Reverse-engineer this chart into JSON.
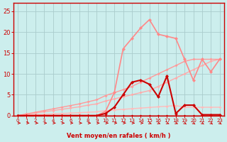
{
  "bg_color": "#cceeed",
  "grid_color": "#aacccc",
  "axis_color": "#cc0000",
  "xlabel": "Vent moyen/en rafales ( km/h )",
  "yticks": [
    0,
    5,
    10,
    15,
    20,
    25
  ],
  "xticks": [
    0,
    1,
    2,
    3,
    4,
    5,
    6,
    7,
    8,
    9,
    10,
    11,
    12,
    13,
    14,
    15,
    16,
    17,
    18,
    19,
    20,
    21,
    22,
    23
  ],
  "xlim": [
    -0.5,
    23.5
  ],
  "ylim": [
    0,
    27
  ],
  "series": [
    {
      "x": [
        0,
        1,
        2,
        3,
        4,
        5,
        6,
        7,
        8,
        9,
        10,
        11,
        12,
        13,
        14,
        15,
        16,
        17,
        18,
        19,
        20,
        21,
        22,
        23
      ],
      "y": [
        0,
        0,
        0,
        0,
        0,
        0,
        0,
        0,
        0,
        0,
        0,
        0,
        0,
        0,
        0,
        0,
        0,
        0,
        0,
        0,
        0,
        0,
        0,
        0
      ],
      "color": "#cc0000",
      "lw": 1.0,
      "marker": "D",
      "ms": 2.0,
      "zorder": 5
    },
    {
      "x": [
        0,
        1,
        2,
        3,
        4,
        5,
        6,
        7,
        8,
        9,
        10,
        11,
        12,
        13,
        14,
        15,
        16,
        17,
        18,
        19,
        20,
        21,
        22,
        23
      ],
      "y": [
        0,
        0.1,
        0.2,
        0.3,
        0.4,
        0.5,
        0.6,
        0.7,
        0.8,
        0.9,
        1.2,
        1.35,
        1.5,
        1.65,
        1.8,
        1.95,
        2.1,
        2.25,
        2.4,
        2.0,
        2.0,
        2.0,
        2.0,
        2.0
      ],
      "color": "#ffbbbb",
      "lw": 1.0,
      "marker": "D",
      "ms": 2.0,
      "zorder": 3
    },
    {
      "x": [
        0,
        1,
        2,
        3,
        4,
        5,
        6,
        7,
        8,
        9,
        10,
        11,
        12,
        13,
        14,
        15,
        16,
        17,
        18,
        19,
        20,
        21,
        22,
        23
      ],
      "y": [
        0,
        0.3,
        0.6,
        0.9,
        1.2,
        1.5,
        1.8,
        2.1,
        2.5,
        2.8,
        3.5,
        4.0,
        4.5,
        5.0,
        5.5,
        6.0,
        7.0,
        8.0,
        9.0,
        10.0,
        11.0,
        12.0,
        13.0,
        13.5
      ],
      "color": "#ffaaaa",
      "lw": 1.0,
      "marker": "D",
      "ms": 2.0,
      "zorder": 3
    },
    {
      "x": [
        0,
        1,
        2,
        3,
        4,
        5,
        6,
        7,
        8,
        9,
        10,
        11,
        12,
        13,
        14,
        15,
        16,
        17,
        18,
        19,
        20,
        21,
        22,
        23
      ],
      "y": [
        0,
        0.4,
        0.8,
        1.2,
        1.6,
        2.0,
        2.4,
        2.8,
        3.3,
        3.8,
        4.8,
        5.5,
        6.2,
        7.0,
        8.0,
        9.0,
        10.0,
        11.0,
        12.0,
        13.0,
        13.5,
        13.5,
        13.5,
        13.5
      ],
      "color": "#ff9999",
      "lw": 1.0,
      "marker": "D",
      "ms": 2.0,
      "zorder": 3
    },
    {
      "x": [
        0,
        1,
        2,
        3,
        4,
        5,
        6,
        7,
        8,
        9,
        10,
        11,
        12,
        13,
        14,
        15,
        16,
        17,
        18,
        19,
        20,
        21,
        22,
        23
      ],
      "y": [
        0,
        0,
        0,
        0,
        0,
        0,
        0,
        0,
        0,
        0,
        1.0,
        5.5,
        16.0,
        18.5,
        21.0,
        23.0,
        19.5,
        19.0,
        18.5,
        13.5,
        8.5,
        13.5,
        10.5,
        13.5
      ],
      "color": "#ff8888",
      "lw": 1.2,
      "marker": "D",
      "ms": 2.5,
      "zorder": 4
    },
    {
      "x": [
        0,
        1,
        2,
        3,
        4,
        5,
        6,
        7,
        8,
        9,
        10,
        11,
        12,
        13,
        14,
        15,
        16,
        17,
        18,
        19,
        20,
        21,
        22,
        23
      ],
      "y": [
        0,
        0,
        0,
        0,
        0,
        0,
        0,
        0,
        0,
        0,
        0.5,
        2.0,
        5.0,
        8.0,
        8.5,
        7.5,
        4.5,
        9.5,
        0.5,
        2.5,
        2.5,
        0.2,
        0.2,
        0.2
      ],
      "color": "#cc0000",
      "lw": 1.5,
      "marker": "D",
      "ms": 2.5,
      "zorder": 6
    }
  ],
  "arrow_color": "#cc0000"
}
